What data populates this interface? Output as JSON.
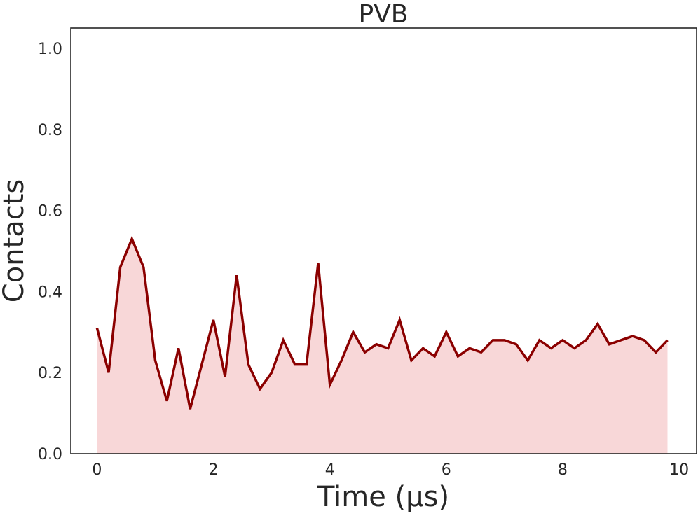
{
  "chart_data": {
    "type": "area",
    "title": "PVB",
    "xlabel": "Time (µs)",
    "ylabel": "Contacts",
    "xlim": [
      -0.45,
      10.3
    ],
    "ylim": [
      0.0,
      1.05
    ],
    "xticks": [
      "0",
      "2",
      "4",
      "6",
      "8",
      "10"
    ],
    "yticks": [
      "0.0",
      "0.2",
      "0.4",
      "0.6",
      "0.8",
      "1.0"
    ],
    "grid": false,
    "legend": "none",
    "series": [
      {
        "line_color": "#8B0000",
        "fill_color": "#F8D7D8",
        "x": [
          0.0,
          0.2,
          0.4,
          0.6,
          0.8,
          1.0,
          1.2,
          1.4,
          1.6,
          1.8,
          2.0,
          2.2,
          2.4,
          2.6,
          2.8,
          3.0,
          3.2,
          3.4,
          3.6,
          3.8,
          4.0,
          4.2,
          4.4,
          4.6,
          4.8,
          5.0,
          5.2,
          5.4,
          5.6,
          5.8,
          6.0,
          6.2,
          6.4,
          6.6,
          6.8,
          7.0,
          7.2,
          7.4,
          7.6,
          7.8,
          8.0,
          8.2,
          8.4,
          8.6,
          8.8,
          9.0,
          9.2,
          9.4,
          9.6,
          9.8
        ],
        "values": [
          0.31,
          0.2,
          0.46,
          0.53,
          0.46,
          0.23,
          0.13,
          0.26,
          0.11,
          0.22,
          0.33,
          0.19,
          0.44,
          0.22,
          0.16,
          0.2,
          0.28,
          0.22,
          0.22,
          0.47,
          0.17,
          0.23,
          0.3,
          0.25,
          0.27,
          0.26,
          0.33,
          0.23,
          0.26,
          0.24,
          0.3,
          0.24,
          0.26,
          0.25,
          0.28,
          0.28,
          0.27,
          0.23,
          0.28,
          0.26,
          0.28,
          0.26,
          0.28,
          0.32,
          0.27,
          0.28,
          0.29,
          0.28,
          0.25,
          0.28
        ]
      }
    ]
  }
}
